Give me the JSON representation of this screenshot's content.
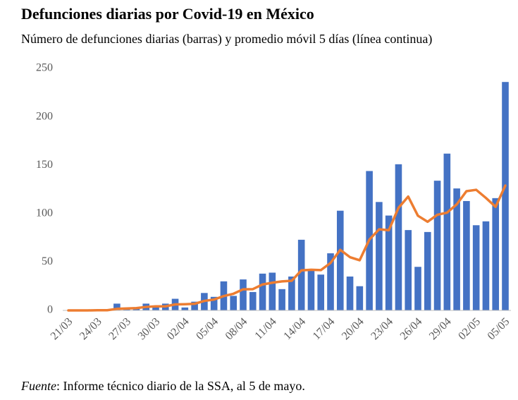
{
  "chart_data": {
    "type": "bar",
    "title": "Defunciones diarias por Covid-19 en México",
    "subtitle": "Número de defunciones diarias (barras) y promedio móvil 5 días (línea continua)",
    "source_label": "Fuente",
    "source_text": ": Informe técnico diario de la SSA, al 5 de mayo.",
    "categories": [
      "21/03",
      null,
      null,
      "24/03",
      null,
      null,
      "27/03",
      null,
      null,
      "30/03",
      null,
      null,
      "02/04",
      null,
      null,
      "05/04",
      null,
      null,
      "08/04",
      null,
      null,
      "11/04",
      null,
      null,
      "14/04",
      null,
      null,
      "17/04",
      null,
      null,
      "20/04",
      null,
      null,
      "23/04",
      null,
      null,
      "26/04",
      null,
      null,
      "29/04",
      null,
      null,
      "02/05",
      null,
      null,
      "05/05"
    ],
    "series": [
      {
        "type": "bar",
        "color": "#4472c4",
        "values": [
          0,
          0,
          0,
          1,
          0,
          7,
          2,
          2,
          7,
          3,
          7,
          12,
          3,
          9,
          18,
          14,
          30,
          15,
          32,
          19,
          38,
          39,
          22,
          35,
          73,
          41,
          37,
          59,
          103,
          35,
          25,
          144,
          112,
          98,
          151,
          83,
          45,
          81,
          134,
          162,
          126,
          113,
          88,
          92,
          116,
          236
        ]
      },
      {
        "type": "line",
        "color": "#ed7d31",
        "values": [
          0,
          0,
          0,
          0.2,
          0.2,
          1.6,
          2,
          2.4,
          3.6,
          4.2,
          4.2,
          6.2,
          6.4,
          6.8,
          9.8,
          11.2,
          14.8,
          17.2,
          21.8,
          22,
          26.8,
          28.6,
          30,
          30.6,
          41.4,
          42,
          41.6,
          49,
          62.6,
          55,
          51.8,
          73.2,
          83.8,
          82.8,
          106,
          117.6,
          97.8,
          91.6,
          98.8,
          101,
          109.6,
          123.2,
          124.6,
          116.2,
          107,
          129
        ]
      }
    ],
    "ylim": [
      0,
      250
    ],
    "yticks": [
      0,
      50,
      100,
      150,
      200,
      250
    ],
    "grid": false
  }
}
